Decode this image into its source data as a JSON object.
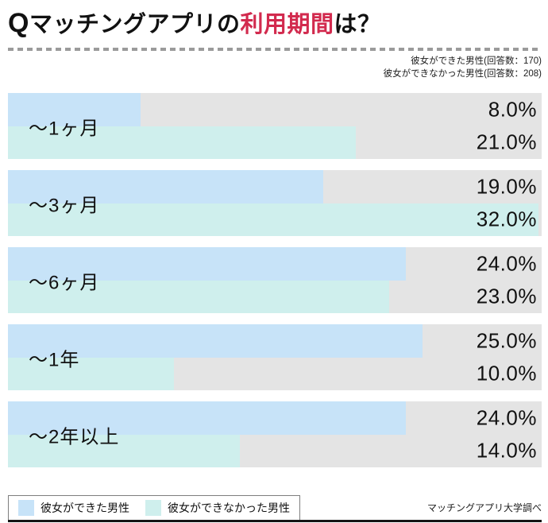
{
  "title": {
    "q": "Q",
    "pre": "マッチングアプリの",
    "highlight": "利用期間",
    "post": "は？"
  },
  "header_note": {
    "line1": "彼女ができた男性(回答数：170)",
    "line2": "彼女ができなかった男性(回答数：208)"
  },
  "legend": {
    "items": [
      {
        "label": "彼女ができた男性",
        "color": "#c7e3f8"
      },
      {
        "label": "彼女ができなかった男性",
        "color": "#cfefed"
      }
    ]
  },
  "source_note": "マッチングアプリ大学調べ",
  "colors": {
    "accent_red": "#d22a4e",
    "track_gray": "#e4e4e4",
    "series1_blue": "#c7e3f8",
    "series2_cyan": "#cfefed",
    "bottom_rule": "#141414"
  },
  "chart_data": {
    "type": "bar",
    "orientation": "horizontal",
    "title": "Qマッチングアプリの利用期間は？",
    "categories": [
      "～1ヶ月",
      "～3ヶ月",
      "～6ヶ月",
      "～1年",
      "～2年以上"
    ],
    "series": [
      {
        "name": "彼女ができた男性",
        "answer_count": 170,
        "color": "#c7e3f8",
        "values": [
          8.0,
          19.0,
          24.0,
          25.0,
          24.0
        ]
      },
      {
        "name": "彼女ができなかった男性",
        "answer_count": 208,
        "color": "#cfefed",
        "values": [
          21.0,
          32.0,
          23.0,
          10.0,
          14.0
        ]
      }
    ],
    "value_suffix": "%",
    "value_labels": "right-aligned-one-decimal",
    "xlim": [
      0,
      32.2
    ],
    "grid": false,
    "legend_position": "bottom-left"
  }
}
